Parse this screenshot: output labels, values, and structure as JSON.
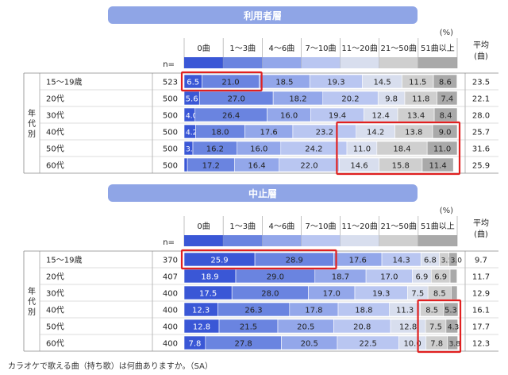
{
  "categories": [
    "0曲",
    "1～3曲",
    "4～6曲",
    "7～10曲",
    "11～20曲",
    "21～50曲",
    "51曲以上"
  ],
  "colors": [
    "#3a57d6",
    "#6a84e0",
    "#93a7ea",
    "#b9c6f1",
    "#d8deee",
    "#cfcfcf",
    "#a9a9a9"
  ],
  "highlight_color": "#e02020",
  "n_label": "n=",
  "percent_label": "(%)",
  "avg_header": "平均\n(曲)",
  "group_label": "年代別",
  "footnote": "カラオケで歌える曲（持ち歌）は何曲ありますか。（SA）",
  "chart_data": [
    {
      "type": "bar",
      "stacked": true,
      "orientation": "horizontal",
      "title": "利用者層",
      "rows": [
        "15～19歳",
        "20代",
        "30代",
        "40代",
        "50代",
        "60代"
      ],
      "n": [
        523,
        500,
        500,
        500,
        500,
        500
      ],
      "series": [
        {
          "name": "0曲",
          "values": [
            6.5,
            5.6,
            4.0,
            4.2,
            3.2,
            1.2
          ]
        },
        {
          "name": "1～3曲",
          "values": [
            21.0,
            27.0,
            26.4,
            18.0,
            16.2,
            17.2
          ]
        },
        {
          "name": "4～6曲",
          "values": [
            18.5,
            18.2,
            16.0,
            17.6,
            16.0,
            16.4
          ]
        },
        {
          "name": "7～10曲",
          "values": [
            19.3,
            20.2,
            19.4,
            23.2,
            24.2,
            22.0
          ]
        },
        {
          "name": "11～20曲",
          "values": [
            14.5,
            9.8,
            12.4,
            14.2,
            11.0,
            14.6
          ]
        },
        {
          "name": "21～50曲",
          "values": [
            11.5,
            11.8,
            13.4,
            13.8,
            18.4,
            15.8
          ]
        },
        {
          "name": "51曲以上",
          "values": [
            8.6,
            7.4,
            8.4,
            9.0,
            11.0,
            11.4
          ]
        }
      ],
      "hide_labels": {
        "5": [
          0
        ]
      },
      "average": [
        23.5,
        22.1,
        28.0,
        25.7,
        31.6,
        25.9
      ],
      "highlights": [
        {
          "rows": [
            0,
            0
          ],
          "cols": [
            0,
            1
          ]
        },
        {
          "rows": [
            3,
            5
          ],
          "cols": [
            4,
            6
          ]
        }
      ]
    },
    {
      "type": "bar",
      "stacked": true,
      "orientation": "horizontal",
      "title": "中止層",
      "rows": [
        "15～19歳",
        "20代",
        "30代",
        "40代",
        "50代",
        "60代"
      ],
      "n": [
        370,
        407,
        400,
        400,
        400,
        400
      ],
      "series": [
        {
          "name": "0曲",
          "values": [
            25.9,
            18.9,
            17.5,
            12.3,
            12.8,
            7.8
          ]
        },
        {
          "name": "1～3曲",
          "values": [
            28.9,
            29.0,
            28.0,
            26.3,
            21.5,
            27.8
          ]
        },
        {
          "name": "4～6曲",
          "values": [
            17.6,
            18.7,
            17.0,
            17.8,
            20.5,
            20.5
          ]
        },
        {
          "name": "7～10曲",
          "values": [
            14.3,
            17.0,
            19.3,
            18.8,
            20.8,
            22.5
          ]
        },
        {
          "name": "11～20曲",
          "values": [
            6.8,
            6.9,
            7.5,
            11.3,
            12.8,
            10.0
          ]
        },
        {
          "name": "21～50曲",
          "values": [
            3.5,
            6.9,
            8.5,
            8.5,
            7.5,
            7.8
          ]
        },
        {
          "name": "51曲以上",
          "values": [
            3.0,
            2.5,
            2.2,
            5.3,
            4.3,
            3.8
          ]
        }
      ],
      "hide_labels": {
        "1": [
          6
        ],
        "2": [
          6
        ]
      },
      "average": [
        9.7,
        11.7,
        12.9,
        16.1,
        17.7,
        12.3
      ],
      "highlights": [
        {
          "rows": [
            0,
            0
          ],
          "cols": [
            0,
            1
          ]
        },
        {
          "rows": [
            3,
            5
          ],
          "cols": [
            5,
            6
          ]
        }
      ]
    }
  ]
}
